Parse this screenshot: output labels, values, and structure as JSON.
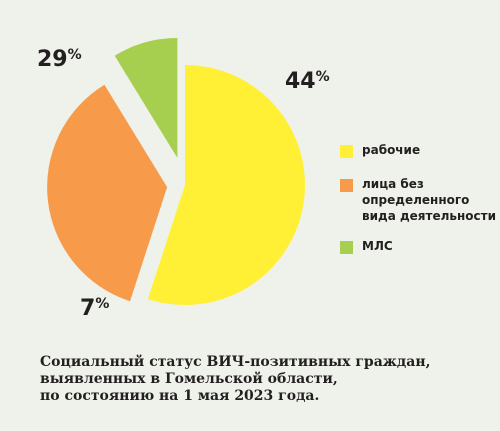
{
  "chart_data": {
    "type": "pie",
    "categories": [
      "рабочие",
      "лица без определенного вида деятельности",
      "МЛС"
    ],
    "values": [
      44,
      29,
      7
    ],
    "colors": [
      "#fff035",
      "#f79b4b",
      "#a6cf50"
    ],
    "labels": [
      {
        "num": "44",
        "sign": "%"
      },
      {
        "num": "29",
        "sign": "%"
      },
      {
        "num": "7",
        "sign": "%"
      }
    ],
    "legend": {
      "placement": "right",
      "items": [
        {
          "lines": [
            "рабочие"
          ],
          "color": "#fff035"
        },
        {
          "lines": [
            "лица без определенного",
            "вида деятельности"
          ],
          "color": "#f79b4b"
        },
        {
          "lines": [
            "МЛС"
          ],
          "color": "#a6cf50"
        }
      ]
    },
    "title_lines": [
      "Социальный статус ВИЧ-позитивных граждан,",
      "выявленных в Гомельской области,",
      "по состоянию на 1 мая 2023 года."
    ]
  }
}
